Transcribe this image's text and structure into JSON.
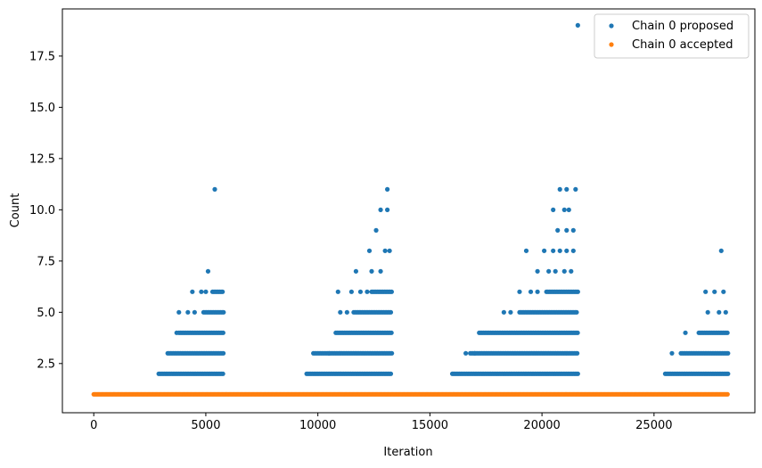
{
  "chart_data": {
    "type": "scatter",
    "title": "",
    "xlabel": "Iteration",
    "ylabel": "Count",
    "xlim": [
      -1400,
      29500
    ],
    "ylim": [
      0.1,
      19.8
    ],
    "xticks": [
      0,
      5000,
      10000,
      15000,
      20000,
      25000
    ],
    "xtick_labels": [
      "0",
      "5000",
      "10000",
      "15000",
      "20000",
      "25000"
    ],
    "yticks": [
      2.5,
      5.0,
      7.5,
      10.0,
      12.5,
      15.0,
      17.5
    ],
    "ytick_labels": [
      "2.5",
      "5.0",
      "7.5",
      "10.0",
      "12.5",
      "15.0",
      "17.5"
    ],
    "grid": false,
    "legend_position": "top-right",
    "series": [
      {
        "name": "Chain 0 proposed",
        "color": "#1f77b4",
        "bands": [
          {
            "y": 2,
            "x_ranges": [
              [
                2900,
                5800
              ],
              [
                9500,
                13300
              ],
              [
                16000,
                21600
              ],
              [
                25500,
                28300
              ]
            ]
          },
          {
            "y": 3,
            "x_ranges": [
              [
                3300,
                5800
              ],
              [
                9800,
                13300
              ],
              [
                16800,
                21600
              ],
              [
                26200,
                28300
              ]
            ]
          },
          {
            "y": 4,
            "x_ranges": [
              [
                3800,
                5800
              ],
              [
                10800,
                13300
              ],
              [
                17200,
                21600
              ],
              [
                27000,
                28300
              ]
            ]
          },
          {
            "y": 5,
            "x_ranges": [
              [
                4900,
                5800
              ],
              [
                11600,
                13300
              ],
              [
                19000,
                21600
              ]
            ]
          },
          {
            "y": 6,
            "x_ranges": [
              [
                5300,
                5800
              ],
              [
                12400,
                13300
              ],
              [
                20200,
                21600
              ]
            ]
          }
        ],
        "points": [
          [
            25800,
            3
          ],
          [
            3700,
            4
          ],
          [
            10500,
            3
          ],
          [
            17000,
            3
          ],
          [
            16600,
            3
          ],
          [
            26400,
            4
          ],
          [
            3800,
            5
          ],
          [
            4200,
            5
          ],
          [
            4500,
            5
          ],
          [
            11000,
            5
          ],
          [
            11300,
            5
          ],
          [
            18300,
            5
          ],
          [
            18600,
            5
          ],
          [
            27400,
            5
          ],
          [
            27900,
            5
          ],
          [
            28200,
            5
          ],
          [
            4400,
            6
          ],
          [
            4800,
            6
          ],
          [
            5000,
            6
          ],
          [
            10900,
            6
          ],
          [
            11500,
            6
          ],
          [
            11900,
            6
          ],
          [
            12200,
            6
          ],
          [
            19000,
            6
          ],
          [
            19500,
            6
          ],
          [
            19800,
            6
          ],
          [
            27300,
            6
          ],
          [
            27700,
            6
          ],
          [
            28100,
            6
          ],
          [
            5100,
            7
          ],
          [
            11700,
            7
          ],
          [
            12400,
            7
          ],
          [
            12800,
            7
          ],
          [
            19800,
            7
          ],
          [
            20300,
            7
          ],
          [
            20600,
            7
          ],
          [
            21000,
            7
          ],
          [
            21300,
            7
          ],
          [
            12300,
            8
          ],
          [
            13000,
            8
          ],
          [
            13200,
            8
          ],
          [
            19300,
            8
          ],
          [
            20100,
            8
          ],
          [
            20500,
            8
          ],
          [
            20800,
            8
          ],
          [
            21100,
            8
          ],
          [
            21400,
            8
          ],
          [
            28000,
            8
          ],
          [
            12600,
            9
          ],
          [
            20700,
            9
          ],
          [
            21100,
            9
          ],
          [
            21400,
            9
          ],
          [
            12800,
            10
          ],
          [
            13100,
            10
          ],
          [
            20500,
            10
          ],
          [
            21000,
            10
          ],
          [
            21200,
            10
          ],
          [
            5400,
            11
          ],
          [
            13100,
            11
          ],
          [
            20800,
            11
          ],
          [
            21100,
            11
          ],
          [
            21500,
            11
          ],
          [
            21600,
            19
          ]
        ]
      },
      {
        "name": "Chain 0 accepted",
        "color": "#ff7f0e",
        "y": 1,
        "x_range": [
          0,
          28300
        ]
      }
    ]
  }
}
